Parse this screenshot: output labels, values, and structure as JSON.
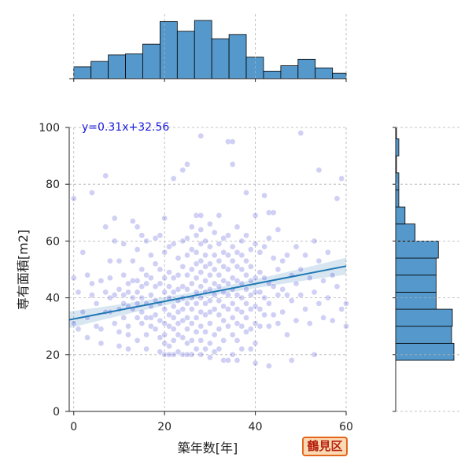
{
  "chart_data": {
    "type": "scatter",
    "xlabel": "築年数[年]",
    "ylabel": "専有面積[m2]",
    "xlim": [
      -1,
      60
    ],
    "ylim": [
      0,
      100
    ],
    "x_ticks": [
      0,
      20,
      40,
      60
    ],
    "y_ticks": [
      0,
      20,
      40,
      60,
      80,
      100
    ],
    "grid": true,
    "regression": {
      "slope": 0.31,
      "intercept": 32.56,
      "label": "y=0.31x+32.56",
      "ci_halfwidth_edge": 3.0
    },
    "point_color": "#2a2ad0",
    "line_color": "#1f77b4",
    "hist_color": "#5599cc",
    "marginal_x_hist": {
      "bin_edges": [
        0,
        3.8,
        7.6,
        11.4,
        15.2,
        19,
        22.8,
        26.6,
        30.4,
        34.2,
        38,
        41.8,
        45.6,
        49.4,
        53.2,
        57,
        60
      ],
      "counts": [
        11,
        16,
        22,
        23,
        32,
        53,
        44,
        54,
        37,
        41,
        20,
        7,
        12,
        18,
        10,
        5
      ]
    },
    "marginal_y_hist": {
      "bin_edges": [
        0,
        6,
        12,
        18,
        24,
        30,
        36,
        42,
        48,
        54,
        60,
        66,
        72,
        78,
        84,
        90,
        96,
        100
      ],
      "counts": [
        0,
        0,
        0,
        75,
        72,
        73,
        52,
        52,
        52,
        55,
        25,
        12,
        4,
        4,
        1,
        4,
        1
      ]
    },
    "points": [
      [
        0,
        47
      ],
      [
        0,
        75
      ],
      [
        0,
        31
      ],
      [
        1,
        42
      ],
      [
        1,
        29
      ],
      [
        2,
        56
      ],
      [
        2,
        35
      ],
      [
        3,
        48
      ],
      [
        3,
        33
      ],
      [
        3,
        26
      ],
      [
        4,
        77
      ],
      [
        4,
        45
      ],
      [
        4,
        41
      ],
      [
        5,
        38
      ],
      [
        5,
        30
      ],
      [
        6,
        29
      ],
      [
        6,
        24
      ],
      [
        6,
        46
      ],
      [
        7,
        35
      ],
      [
        7,
        83
      ],
      [
        7,
        42
      ],
      [
        7,
        65
      ],
      [
        8,
        40
      ],
      [
        8,
        53
      ],
      [
        8,
        47
      ],
      [
        8,
        35
      ],
      [
        9,
        41
      ],
      [
        9,
        31
      ],
      [
        9,
        68
      ],
      [
        9,
        60
      ],
      [
        10,
        53
      ],
      [
        10,
        43
      ],
      [
        10,
        36
      ],
      [
        10,
        28
      ],
      [
        10,
        23
      ],
      [
        11,
        48
      ],
      [
        11,
        41
      ],
      [
        11,
        38
      ],
      [
        11,
        33
      ],
      [
        11,
        59
      ],
      [
        12,
        45
      ],
      [
        12,
        42
      ],
      [
        12,
        37
      ],
      [
        12,
        30
      ],
      [
        12,
        27
      ],
      [
        12,
        22
      ],
      [
        13,
        67
      ],
      [
        13,
        53
      ],
      [
        13,
        46
      ],
      [
        13,
        40
      ],
      [
        13,
        36
      ],
      [
        14,
        57
      ],
      [
        14,
        46
      ],
      [
        14,
        42
      ],
      [
        14,
        38
      ],
      [
        14,
        33
      ],
      [
        14,
        25
      ],
      [
        14,
        65
      ],
      [
        15,
        62
      ],
      [
        15,
        50
      ],
      [
        15,
        44
      ],
      [
        15,
        40
      ],
      [
        15,
        35
      ],
      [
        15,
        31
      ],
      [
        16,
        60
      ],
      [
        16,
        48
      ],
      [
        16,
        45
      ],
      [
        16,
        38
      ],
      [
        16,
        33
      ],
      [
        16,
        27
      ],
      [
        16,
        22
      ],
      [
        17,
        55
      ],
      [
        17,
        47
      ],
      [
        17,
        41
      ],
      [
        17,
        37
      ],
      [
        17,
        33
      ],
      [
        17,
        30
      ],
      [
        18,
        61
      ],
      [
        18,
        52
      ],
      [
        18,
        44
      ],
      [
        18,
        39
      ],
      [
        18,
        34
      ],
      [
        18,
        29
      ],
      [
        19,
        62
      ],
      [
        19,
        50
      ],
      [
        19,
        45
      ],
      [
        19,
        38
      ],
      [
        19,
        32
      ],
      [
        19,
        26
      ],
      [
        19,
        21
      ],
      [
        20,
        68
      ],
      [
        20,
        56
      ],
      [
        20,
        47
      ],
      [
        20,
        42
      ],
      [
        20,
        36
      ],
      [
        20,
        31
      ],
      [
        20,
        27
      ],
      [
        20,
        24
      ],
      [
        20,
        20
      ],
      [
        21,
        58
      ],
      [
        21,
        49
      ],
      [
        21,
        44
      ],
      [
        21,
        40
      ],
      [
        21,
        34
      ],
      [
        21,
        30
      ],
      [
        21,
        23
      ],
      [
        21,
        20
      ],
      [
        22,
        82
      ],
      [
        22,
        59
      ],
      [
        22,
        47
      ],
      [
        22,
        42
      ],
      [
        22,
        37
      ],
      [
        22,
        33
      ],
      [
        22,
        29
      ],
      [
        22,
        25
      ],
      [
        22,
        20
      ],
      [
        23,
        54
      ],
      [
        23,
        48
      ],
      [
        23,
        43
      ],
      [
        23,
        39
      ],
      [
        23,
        35
      ],
      [
        23,
        31
      ],
      [
        23,
        27
      ],
      [
        23,
        21
      ],
      [
        24,
        85
      ],
      [
        24,
        60
      ],
      [
        24,
        51
      ],
      [
        24,
        44
      ],
      [
        24,
        40
      ],
      [
        24,
        36
      ],
      [
        24,
        32
      ],
      [
        24,
        26
      ],
      [
        24,
        20
      ],
      [
        25,
        87
      ],
      [
        25,
        61
      ],
      [
        25,
        55
      ],
      [
        25,
        48
      ],
      [
        25,
        43
      ],
      [
        25,
        38
      ],
      [
        25,
        33
      ],
      [
        25,
        29
      ],
      [
        25,
        24
      ],
      [
        25,
        20
      ],
      [
        26,
        65
      ],
      [
        26,
        57
      ],
      [
        26,
        50
      ],
      [
        26,
        45
      ],
      [
        26,
        40
      ],
      [
        26,
        36
      ],
      [
        26,
        31
      ],
      [
        26,
        25
      ],
      [
        26,
        20
      ],
      [
        27,
        69
      ],
      [
        27,
        62
      ],
      [
        27,
        56
      ],
      [
        27,
        52
      ],
      [
        27,
        47
      ],
      [
        27,
        42
      ],
      [
        27,
        38
      ],
      [
        27,
        33
      ],
      [
        27,
        28
      ],
      [
        27,
        22
      ],
      [
        28,
        97
      ],
      [
        28,
        69
      ],
      [
        28,
        64
      ],
      [
        28,
        59
      ],
      [
        28,
        53
      ],
      [
        28,
        49
      ],
      [
        28,
        44
      ],
      [
        28,
        40
      ],
      [
        28,
        35
      ],
      [
        28,
        30
      ],
      [
        28,
        25
      ],
      [
        28,
        20
      ],
      [
        29,
        60
      ],
      [
        29,
        55
      ],
      [
        29,
        51
      ],
      [
        29,
        46
      ],
      [
        29,
        42
      ],
      [
        29,
        38
      ],
      [
        29,
        34
      ],
      [
        29,
        28
      ],
      [
        29,
        22
      ],
      [
        30,
        66
      ],
      [
        30,
        58
      ],
      [
        30,
        52
      ],
      [
        30,
        48
      ],
      [
        30,
        43
      ],
      [
        30,
        39
      ],
      [
        30,
        35
      ],
      [
        30,
        31
      ],
      [
        30,
        24
      ],
      [
        30,
        19
      ],
      [
        31,
        63
      ],
      [
        31,
        55
      ],
      [
        31,
        50
      ],
      [
        31,
        45
      ],
      [
        31,
        41
      ],
      [
        31,
        36
      ],
      [
        31,
        27
      ],
      [
        31,
        21
      ],
      [
        32,
        69
      ],
      [
        32,
        59
      ],
      [
        32,
        53
      ],
      [
        32,
        48
      ],
      [
        32,
        44
      ],
      [
        32,
        39
      ],
      [
        32,
        34
      ],
      [
        32,
        29
      ],
      [
        32,
        22
      ],
      [
        33,
        61
      ],
      [
        33,
        56
      ],
      [
        33,
        51
      ],
      [
        33,
        46
      ],
      [
        33,
        42
      ],
      [
        33,
        37
      ],
      [
        33,
        32
      ],
      [
        33,
        25
      ],
      [
        33,
        18
      ],
      [
        34,
        95
      ],
      [
        34,
        62
      ],
      [
        34,
        55
      ],
      [
        34,
        50
      ],
      [
        34,
        45
      ],
      [
        34,
        41
      ],
      [
        34,
        36
      ],
      [
        34,
        30
      ],
      [
        34,
        18
      ],
      [
        35,
        95
      ],
      [
        35,
        87
      ],
      [
        35,
        58
      ],
      [
        35,
        53
      ],
      [
        35,
        47
      ],
      [
        35,
        43
      ],
      [
        35,
        38
      ],
      [
        35,
        33
      ],
      [
        35,
        27
      ],
      [
        35,
        20
      ],
      [
        36,
        65
      ],
      [
        36,
        56
      ],
      [
        36,
        51
      ],
      [
        36,
        46
      ],
      [
        36,
        41
      ],
      [
        36,
        36
      ],
      [
        36,
        31
      ],
      [
        36,
        25
      ],
      [
        36,
        18
      ],
      [
        37,
        60
      ],
      [
        37,
        55
      ],
      [
        37,
        50
      ],
      [
        37,
        45
      ],
      [
        37,
        40
      ],
      [
        37,
        35
      ],
      [
        37,
        30
      ],
      [
        37,
        22
      ],
      [
        38,
        77
      ],
      [
        38,
        62
      ],
      [
        38,
        53
      ],
      [
        38,
        48
      ],
      [
        38,
        43
      ],
      [
        38,
        38
      ],
      [
        38,
        33
      ],
      [
        38,
        28
      ],
      [
        39,
        57
      ],
      [
        39,
        51
      ],
      [
        39,
        46
      ],
      [
        39,
        41
      ],
      [
        39,
        36
      ],
      [
        39,
        29
      ],
      [
        39,
        22
      ],
      [
        40,
        69
      ],
      [
        40,
        59
      ],
      [
        40,
        47
      ],
      [
        40,
        42
      ],
      [
        40,
        37
      ],
      [
        40,
        31
      ],
      [
        40,
        24
      ],
      [
        40,
        17
      ],
      [
        41,
        56
      ],
      [
        41,
        49
      ],
      [
        41,
        42
      ],
      [
        41,
        36
      ],
      [
        41,
        30
      ],
      [
        42,
        76
      ],
      [
        42,
        58
      ],
      [
        42,
        47
      ],
      [
        42,
        40
      ],
      [
        42,
        34
      ],
      [
        43,
        70
      ],
      [
        43,
        61
      ],
      [
        43,
        45
      ],
      [
        43,
        38
      ],
      [
        43,
        30
      ],
      [
        43,
        16
      ],
      [
        44,
        70
      ],
      [
        44,
        54
      ],
      [
        44,
        44
      ],
      [
        44,
        34
      ],
      [
        45,
        64
      ],
      [
        45,
        50
      ],
      [
        45,
        41
      ],
      [
        45,
        31
      ],
      [
        46,
        53
      ],
      [
        46,
        43
      ],
      [
        46,
        35
      ],
      [
        47,
        55
      ],
      [
        47,
        41
      ],
      [
        47,
        27
      ],
      [
        48,
        48
      ],
      [
        48,
        39
      ],
      [
        48,
        18
      ],
      [
        49,
        58
      ],
      [
        49,
        45
      ],
      [
        49,
        32
      ],
      [
        50,
        98
      ],
      [
        50,
        50
      ],
      [
        50,
        41
      ],
      [
        51,
        55
      ],
      [
        51,
        36
      ],
      [
        52,
        47
      ],
      [
        52,
        31
      ],
      [
        53,
        60
      ],
      [
        53,
        42
      ],
      [
        53,
        20
      ],
      [
        54,
        85
      ],
      [
        54,
        53
      ],
      [
        54,
        38
      ],
      [
        55,
        46
      ],
      [
        55,
        33
      ],
      [
        56,
        56
      ],
      [
        56,
        40
      ],
      [
        57,
        48
      ],
      [
        57,
        32
      ],
      [
        58,
        75
      ],
      [
        58,
        44
      ],
      [
        59,
        82
      ],
      [
        59,
        36
      ],
      [
        60,
        38
      ],
      [
        60,
        30
      ]
    ]
  },
  "overlay": {
    "equation_label": "y=0.31x+32.56",
    "ward_label": "鶴見区"
  }
}
